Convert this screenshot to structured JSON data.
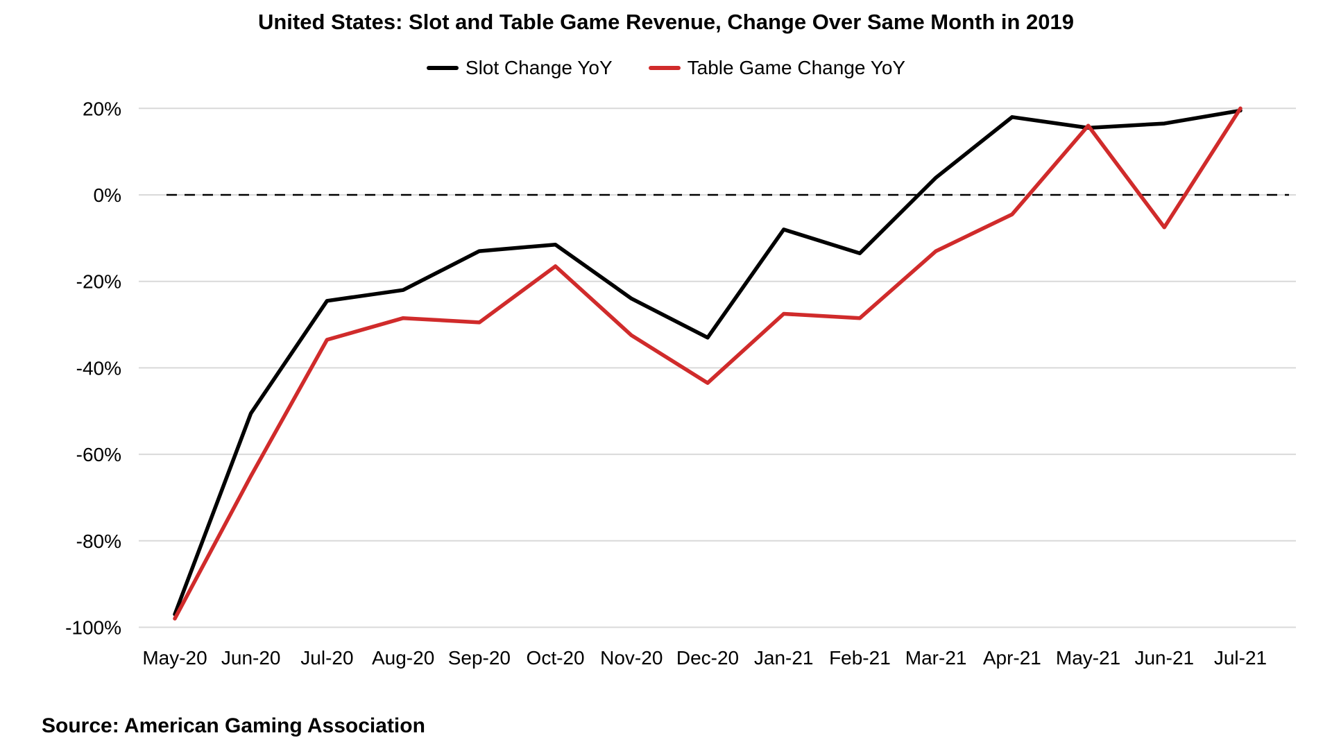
{
  "title": "United States: Slot and Table Game Revenue, Change Over Same Month in 2019",
  "source_note": "Source: American Gaming Association",
  "chart_data": {
    "type": "line",
    "title": "United States: Slot and Table Game Revenue, Change Over Same Month in 2019",
    "categories": [
      "May-20",
      "Jun-20",
      "Jul-20",
      "Aug-20",
      "Sep-20",
      "Oct-20",
      "Nov-20",
      "Dec-20",
      "Jan-21",
      "Feb-21",
      "Mar-21",
      "Apr-21",
      "May-21",
      "Jun-21",
      "Jul-21"
    ],
    "series": [
      {
        "name": "Slot Change YoY",
        "color": "#000000",
        "values": [
          -97,
          -50.5,
          -24.5,
          -22,
          -13,
          -11.5,
          -24,
          -33,
          -8,
          -13.5,
          4,
          18,
          15.5,
          16.5,
          19.5
        ]
      },
      {
        "name": "Table Game Change YoY",
        "color": "#d02b2b",
        "values": [
          -98,
          -65,
          -33.5,
          -28.5,
          -29.5,
          -16.5,
          -32.5,
          -43.5,
          -27.5,
          -28.5,
          -13,
          -4.5,
          16,
          -7.5,
          20
        ]
      }
    ],
    "xlabel": "",
    "ylabel": "",
    "y_ticks": [
      20,
      0,
      -20,
      -40,
      -60,
      -80,
      -100
    ],
    "y_tick_suffix": "%",
    "ylim": [
      -100,
      20
    ],
    "grid": true,
    "grid_color": "#d9d9d9",
    "zero_line": "dashed",
    "zero_line_color": "#000000",
    "legend_position": "top",
    "background": "#ffffff"
  }
}
